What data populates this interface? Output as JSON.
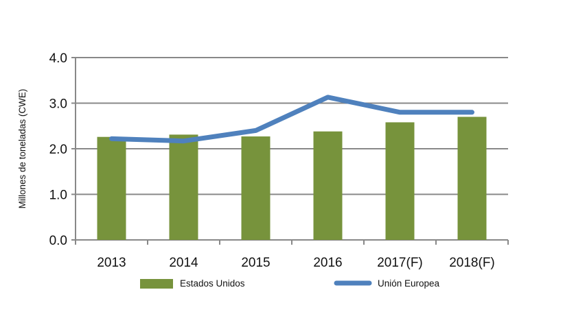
{
  "chart_data": {
    "type": "bar+line",
    "title": "",
    "xlabel": "",
    "ylabel": "Millones de toneladas (CWE)",
    "ylim": [
      0,
      4.0
    ],
    "yticks": [
      "0.0",
      "1.0",
      "2.0",
      "3.0",
      "4.0"
    ],
    "grid": true,
    "legend": "bottom",
    "categories": [
      "2013",
      "2014",
      "2015",
      "2016",
      "2017(F)",
      "2018(F)"
    ],
    "series": [
      {
        "name": "Estados Unidos",
        "type": "bar",
        "color": "#77933c",
        "values": [
          2.26,
          2.31,
          2.27,
          2.38,
          2.58,
          2.7
        ]
      },
      {
        "name": "Unión Europea",
        "type": "line",
        "color": "#4f81bd",
        "values": [
          2.22,
          2.17,
          2.4,
          3.13,
          2.8,
          2.8
        ]
      }
    ]
  }
}
